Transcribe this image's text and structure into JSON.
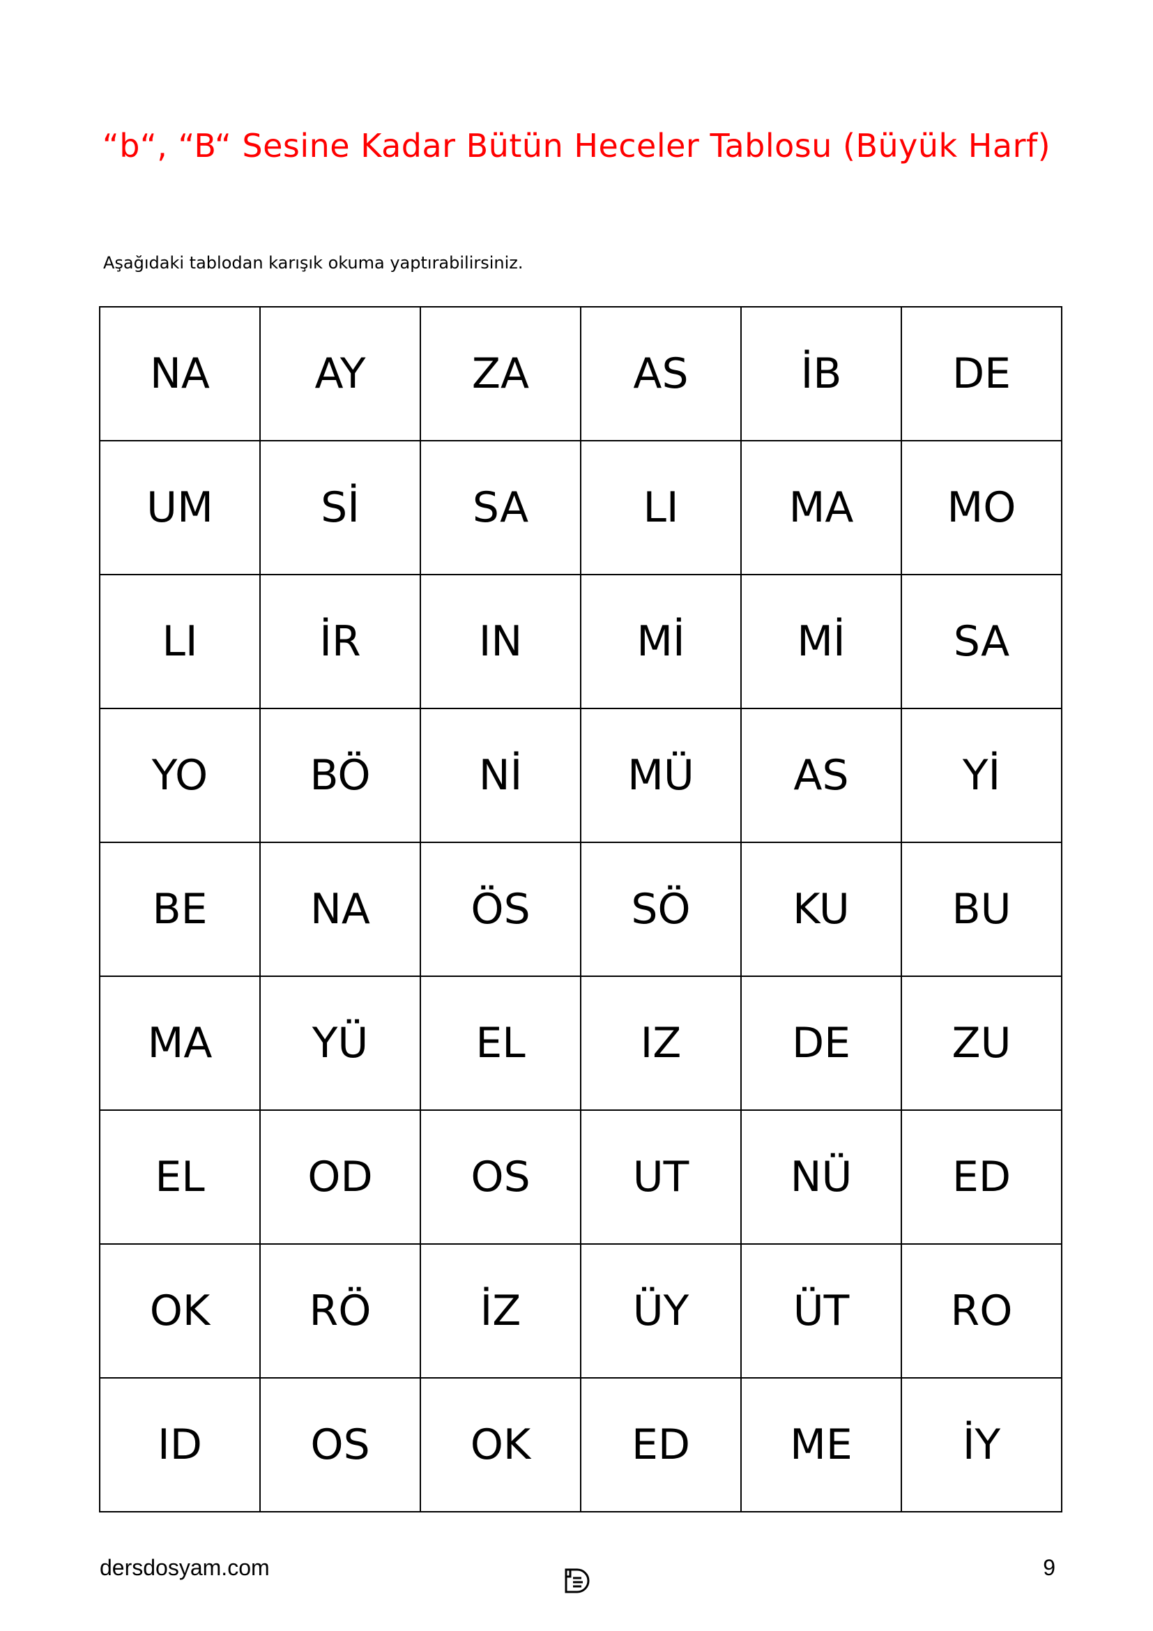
{
  "title": "“b“, “B“ Sesine Kadar Bütün Heceler Tablosu (Büyük Harf)",
  "subtitle": "Aşağıdaki tablodan karışık okuma yaptırabilirsiniz.",
  "table": [
    [
      "NA",
      "AY",
      "ZA",
      "AS",
      "İB",
      "DE"
    ],
    [
      "UM",
      "Sİ",
      "SA",
      "LI",
      "MA",
      "MO"
    ],
    [
      "LI",
      "İR",
      "IN",
      "Mİ",
      "Mİ",
      "SA"
    ],
    [
      "YO",
      "BÖ",
      "Nİ",
      "MÜ",
      "AS",
      "Yİ"
    ],
    [
      "BE",
      "NA",
      "ÖS",
      "SÖ",
      "KU",
      "BU"
    ],
    [
      "MA",
      "YÜ",
      "EL",
      "IZ",
      "DE",
      "ZU"
    ],
    [
      "EL",
      "OD",
      "OS",
      "UT",
      "NÜ",
      "ED"
    ],
    [
      "OK",
      "RÖ",
      "İZ",
      "ÜY",
      "ÜT",
      "RO"
    ],
    [
      "ID",
      "OS",
      "OK",
      "ED",
      "ME",
      "İY"
    ]
  ],
  "footer": {
    "site": "dersdosyam.com",
    "page_number": "9",
    "logo_icon": "document-icon"
  },
  "colors": {
    "title": "#ff0000"
  }
}
